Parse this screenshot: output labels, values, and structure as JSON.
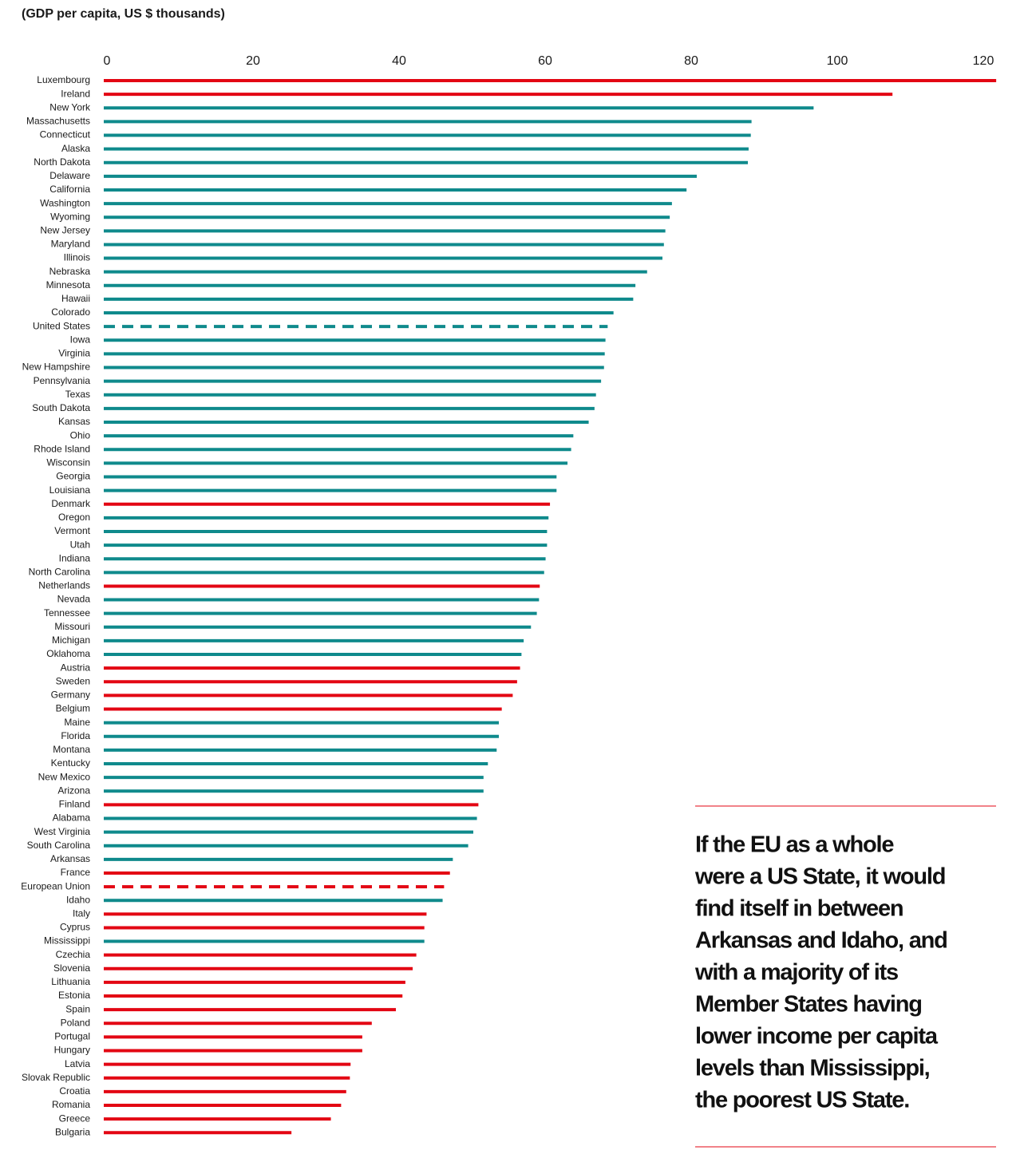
{
  "chart_data": {
    "type": "hbar",
    "title": "(GDP per capita, US $ thousands)",
    "categories": [
      "Luxembourg",
      "Ireland",
      "New York",
      "Massachusetts",
      "Connecticut",
      "Alaska",
      "North Dakota",
      "Delaware",
      "California",
      "Washington",
      "Wyoming",
      "New Jersey",
      "Maryland",
      "Illinois",
      "Nebraska",
      "Minnesota",
      "Hawaii",
      "Colorado",
      "United States",
      "Iowa",
      "Virginia",
      "New Hampshire",
      "Pennsylvania",
      "Texas",
      "South Dakota",
      "Kansas",
      "Ohio",
      "Rhode Island",
      "Wisconsin",
      "Georgia",
      "Louisiana",
      "Denmark",
      "Oregon",
      "Vermont",
      "Utah",
      "Indiana",
      "North Carolina",
      "Netherlands",
      "Nevada",
      "Tennessee",
      "Missouri",
      "Michigan",
      "Oklahoma",
      "Austria",
      "Sweden",
      "Germany",
      "Belgium",
      "Maine",
      "Florida",
      "Montana",
      "Kentucky",
      "New Mexico",
      "Arizona",
      "Finland",
      "Alabama",
      "West Virginia",
      "South Carolina",
      "Arkansas",
      "France",
      "European Union",
      "Idaho",
      "Italy",
      "Cyprus",
      "Mississippi",
      "Czechia",
      "Slovenia",
      "Lithuania",
      "Estonia",
      "Spain",
      "Poland",
      "Portugal",
      "Hungary",
      "Latvia",
      "Slovak Republic",
      "Croatia",
      "Romania",
      "Greece",
      "Bulgaria"
    ],
    "values": [
      122.2,
      108.0,
      97.2,
      88.7,
      88.6,
      88.3,
      88.2,
      81.2,
      79.8,
      77.8,
      77.5,
      76.9,
      76.7,
      76.5,
      74.4,
      72.8,
      72.5,
      69.8,
      69.0,
      68.7,
      68.6,
      68.5,
      68.1,
      67.4,
      67.2,
      66.4,
      64.3,
      64.0,
      63.5,
      62.0,
      62.0,
      61.1,
      60.9,
      60.7,
      60.7,
      60.5,
      60.3,
      59.7,
      59.6,
      59.3,
      58.5,
      57.5,
      57.2,
      57.0,
      56.6,
      56.0,
      54.5,
      54.1,
      54.1,
      53.8,
      52.6,
      52.0,
      52.0,
      51.3,
      51.1,
      50.6,
      49.9,
      47.8,
      47.4,
      46.6,
      46.4,
      44.2,
      43.9,
      43.9,
      42.8,
      42.3,
      41.3,
      40.9,
      40.0,
      36.7,
      35.4,
      35.4,
      33.8,
      33.7,
      33.2,
      32.5,
      31.1,
      25.7
    ],
    "colors": [
      "#e30613",
      "#e30613",
      "#0f8a8c",
      "#0f8a8c",
      "#0f8a8c",
      "#0f8a8c",
      "#0f8a8c",
      "#0f8a8c",
      "#0f8a8c",
      "#0f8a8c",
      "#0f8a8c",
      "#0f8a8c",
      "#0f8a8c",
      "#0f8a8c",
      "#0f8a8c",
      "#0f8a8c",
      "#0f8a8c",
      "#0f8a8c",
      "#0f8a8c",
      "#0f8a8c",
      "#0f8a8c",
      "#0f8a8c",
      "#0f8a8c",
      "#0f8a8c",
      "#0f8a8c",
      "#0f8a8c",
      "#0f8a8c",
      "#0f8a8c",
      "#0f8a8c",
      "#0f8a8c",
      "#0f8a8c",
      "#e30613",
      "#0f8a8c",
      "#0f8a8c",
      "#0f8a8c",
      "#0f8a8c",
      "#0f8a8c",
      "#e30613",
      "#0f8a8c",
      "#0f8a8c",
      "#0f8a8c",
      "#0f8a8c",
      "#0f8a8c",
      "#e30613",
      "#e30613",
      "#e30613",
      "#e30613",
      "#0f8a8c",
      "#0f8a8c",
      "#0f8a8c",
      "#0f8a8c",
      "#0f8a8c",
      "#0f8a8c",
      "#e30613",
      "#0f8a8c",
      "#0f8a8c",
      "#0f8a8c",
      "#0f8a8c",
      "#e30613",
      "#e30613",
      "#0f8a8c",
      "#e30613",
      "#e30613",
      "#0f8a8c",
      "#e30613",
      "#e30613",
      "#e30613",
      "#e30613",
      "#e30613",
      "#e30613",
      "#e30613",
      "#e30613",
      "#e30613",
      "#e30613",
      "#e30613",
      "#e30613",
      "#e30613",
      "#e30613"
    ],
    "dashed_categories": [
      "United States",
      "European Union"
    ],
    "xlim": [
      0,
      122.5
    ],
    "xticks": [
      0,
      20,
      40,
      60,
      80,
      100,
      120
    ],
    "annotation": [
      "If the EU as a whole",
      "were a US State, it would",
      "find itself in between",
      "Arkansas and Idaho, and",
      "with a majority of its",
      "Member States having",
      "lower income per capita",
      "levels than Mississippi,",
      "the poorest US State."
    ]
  }
}
